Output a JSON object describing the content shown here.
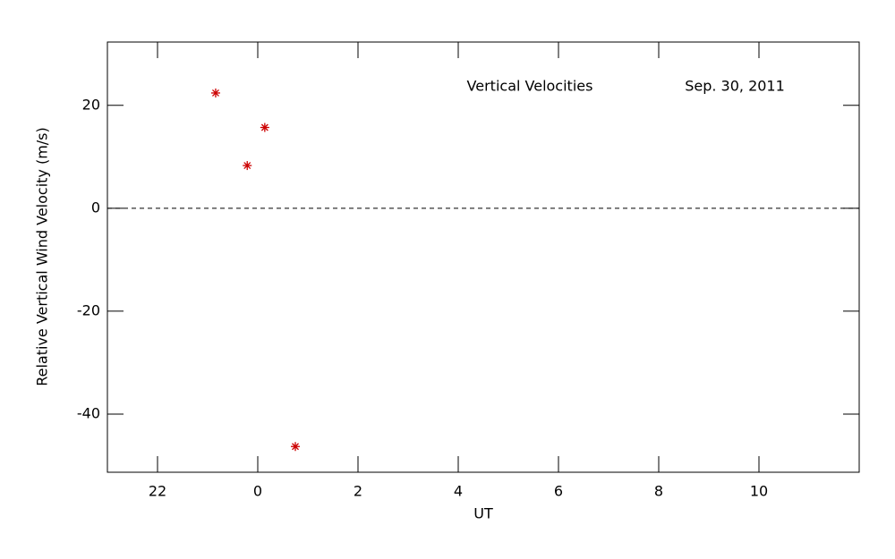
{
  "chart_data": {
    "type": "scatter",
    "annotations": [
      "Vertical Velocities",
      "Sep. 30, 2011"
    ],
    "xlabel": "UT",
    "ylabel": "Relative Vertical Wind Velocity (m/s)",
    "series": [
      {
        "color": "#cc0000",
        "marker": "asterisk",
        "x": [
          -0.84,
          -0.21,
          0.14,
          0.75
        ],
        "values": [
          22.4,
          8.3,
          15.7,
          -46.3
        ]
      }
    ],
    "xlim": [
      -3,
      12
    ],
    "ylim": [
      -51.3,
      32.3
    ],
    "xticks": [
      {
        "value": -2,
        "label": "22"
      },
      0,
      2,
      4,
      6,
      8,
      10
    ],
    "yticks": [
      -40,
      -20,
      0,
      20
    ],
    "reference_line": 0,
    "grid": false
  }
}
